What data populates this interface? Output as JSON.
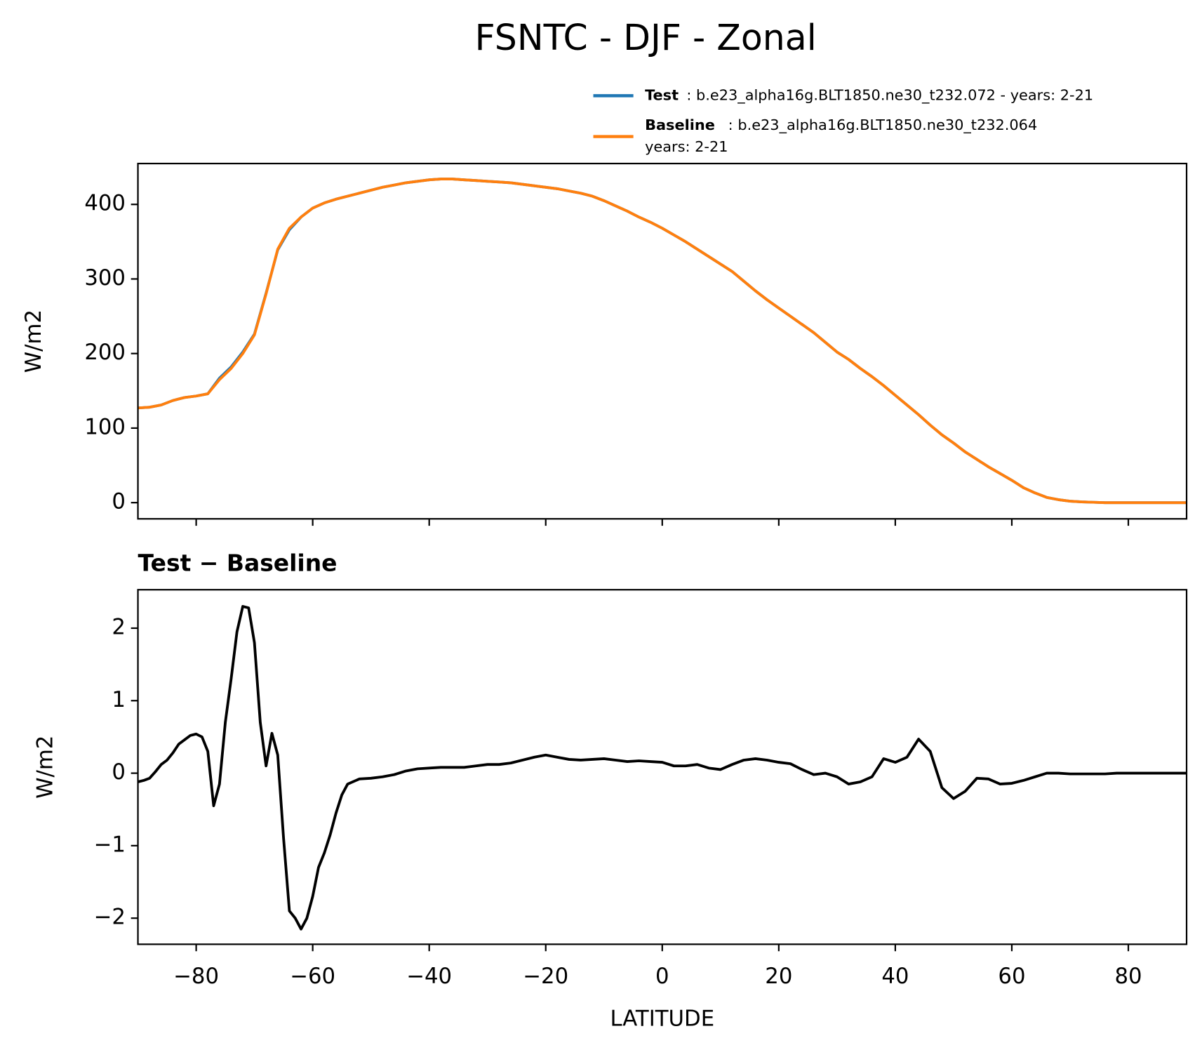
{
  "chart_data": [
    {
      "type": "line",
      "title": "FSNTC - DJF - Zonal",
      "ylabel": "W/m2",
      "x": [
        -90,
        -88,
        -86,
        -84,
        -82,
        -80,
        -78,
        -76,
        -74,
        -72,
        -70,
        -68,
        -66,
        -64,
        -62,
        -60,
        -58,
        -56,
        -54,
        -52,
        -50,
        -48,
        -46,
        -44,
        -42,
        -40,
        -38,
        -36,
        -34,
        -32,
        -30,
        -28,
        -26,
        -24,
        -22,
        -20,
        -18,
        -16,
        -14,
        -12,
        -10,
        -8,
        -6,
        -4,
        -2,
        0,
        2,
        4,
        6,
        8,
        10,
        12,
        14,
        16,
        18,
        20,
        22,
        24,
        26,
        28,
        30,
        32,
        34,
        36,
        38,
        40,
        42,
        44,
        46,
        48,
        50,
        52,
        54,
        56,
        58,
        60,
        62,
        64,
        66,
        68,
        70,
        72,
        74,
        76,
        78,
        80,
        82,
        84,
        86,
        88,
        90
      ],
      "series": [
        {
          "name": "Test",
          "description": [
            ": b.e23_alpha16g.BLT1850.ne30_t232.072 - years: 2-21"
          ],
          "color": "#1f77b4",
          "values": [
            127,
            128,
            131,
            137,
            141,
            143,
            146,
            167,
            182,
            202,
            226,
            281,
            339,
            366,
            383,
            395,
            402,
            407,
            411,
            415,
            419,
            423,
            426,
            429,
            431,
            433,
            434,
            434,
            433,
            432,
            431,
            430,
            429,
            427,
            425,
            423,
            421,
            418,
            415,
            411,
            405,
            398,
            391,
            383,
            376,
            368,
            359,
            350,
            340,
            330,
            320,
            310,
            297,
            284,
            272,
            261,
            250,
            239,
            228,
            215,
            202,
            192,
            180,
            169,
            157,
            144,
            131,
            118,
            104,
            91,
            80,
            68,
            58,
            48,
            39,
            30,
            20,
            13,
            7,
            4,
            2,
            1,
            0.5,
            0,
            0,
            0,
            0,
            0,
            0,
            0,
            0
          ]
        },
        {
          "name": "Baseline",
          "description": [
            ": b.e23_alpha16g.BLT1850.ne30_t232.064",
            "years: 2-21"
          ],
          "color": "#ff7f0e",
          "values": [
            127,
            128,
            131,
            137,
            141,
            143,
            146,
            165,
            180,
            200,
            225,
            280,
            340,
            368,
            383,
            395,
            402,
            407,
            411,
            415,
            419,
            423,
            426,
            429,
            431,
            433,
            434,
            434,
            433,
            432,
            431,
            430,
            429,
            427,
            425,
            423,
            421,
            418,
            415,
            411,
            405,
            398,
            391,
            383,
            376,
            368,
            359,
            350,
            340,
            330,
            320,
            310,
            297,
            284,
            272,
            261,
            250,
            239,
            228,
            215,
            202,
            192,
            180,
            169,
            157,
            144,
            131,
            118,
            104,
            91,
            80,
            68,
            58,
            48,
            39,
            30,
            20,
            13,
            7,
            4,
            2,
            1,
            0.5,
            0,
            0,
            0,
            0,
            0,
            0,
            0,
            0
          ]
        }
      ],
      "xlim": [
        -90,
        90
      ],
      "xticks": [
        -80,
        -60,
        -40,
        -20,
        0,
        20,
        40,
        60,
        80
      ],
      "ylim": [
        -21.7,
        454.8
      ],
      "yticks": [
        0,
        100,
        200,
        300,
        400
      ]
    },
    {
      "type": "line",
      "title": "Test − Baseline",
      "ylabel": "W/m2",
      "xlabel": "LATITUDE",
      "color": "#000000",
      "x": [
        -90,
        -89,
        -88,
        -87,
        -86,
        -85,
        -84,
        -83,
        -82,
        -81,
        -80,
        -79,
        -78,
        -77,
        -76,
        -75,
        -74,
        -73,
        -72,
        -71,
        -70,
        -69,
        -68,
        -67,
        -66,
        -65,
        -64,
        -63,
        -62,
        -61,
        -60,
        -59,
        -58,
        -57,
        -56,
        -55,
        -54,
        -52,
        -50,
        -48,
        -46,
        -44,
        -42,
        -40,
        -38,
        -36,
        -34,
        -32,
        -30,
        -28,
        -26,
        -24,
        -22,
        -20,
        -18,
        -16,
        -14,
        -12,
        -10,
        -8,
        -6,
        -4,
        -2,
        0,
        2,
        4,
        6,
        8,
        10,
        12,
        14,
        16,
        18,
        20,
        22,
        24,
        26,
        28,
        30,
        32,
        34,
        36,
        38,
        40,
        42,
        44,
        46,
        48,
        50,
        52,
        54,
        56,
        58,
        60,
        62,
        64,
        66,
        68,
        70,
        72,
        74,
        76,
        78,
        80,
        82,
        84,
        86,
        88,
        90
      ],
      "values": [
        -0.12,
        -0.1,
        -0.07,
        0.02,
        0.12,
        0.18,
        0.28,
        0.4,
        0.46,
        0.52,
        0.54,
        0.5,
        0.3,
        -0.45,
        -0.15,
        0.7,
        1.3,
        1.95,
        2.3,
        2.28,
        1.8,
        0.7,
        0.1,
        0.55,
        0.25,
        -0.9,
        -1.9,
        -2.0,
        -2.15,
        -2.0,
        -1.7,
        -1.3,
        -1.1,
        -0.85,
        -0.55,
        -0.3,
        -0.15,
        -0.08,
        -0.07,
        -0.05,
        -0.02,
        0.03,
        0.06,
        0.07,
        0.08,
        0.08,
        0.08,
        0.1,
        0.12,
        0.12,
        0.14,
        0.18,
        0.22,
        0.25,
        0.22,
        0.19,
        0.18,
        0.19,
        0.2,
        0.18,
        0.16,
        0.17,
        0.16,
        0.15,
        0.1,
        0.1,
        0.12,
        0.07,
        0.05,
        0.12,
        0.18,
        0.2,
        0.18,
        0.15,
        0.13,
        0.05,
        -0.02,
        0,
        -0.05,
        -0.15,
        -0.12,
        -0.05,
        0.2,
        0.15,
        0.22,
        0.47,
        0.3,
        -0.2,
        -0.35,
        -0.25,
        -0.07,
        -0.08,
        -0.15,
        -0.14,
        -0.1,
        -0.05,
        0,
        0,
        -0.01,
        -0.01,
        -0.01,
        -0.01,
        0,
        0,
        0,
        0,
        0,
        0,
        0
      ],
      "xlim": [
        -90,
        90
      ],
      "xticks": [
        {
          "value": -80,
          "label": "−80"
        },
        {
          "value": -60,
          "label": "−60"
        },
        {
          "value": -40,
          "label": "−40"
        },
        {
          "value": -20,
          "label": "−20"
        },
        0,
        20,
        40,
        60,
        80
      ],
      "ylim": [
        -2.36,
        2.53
      ],
      "yticks": [
        {
          "value": -2,
          "label": "−2"
        },
        {
          "value": -1,
          "label": "−1"
        },
        0,
        1,
        2
      ]
    }
  ]
}
